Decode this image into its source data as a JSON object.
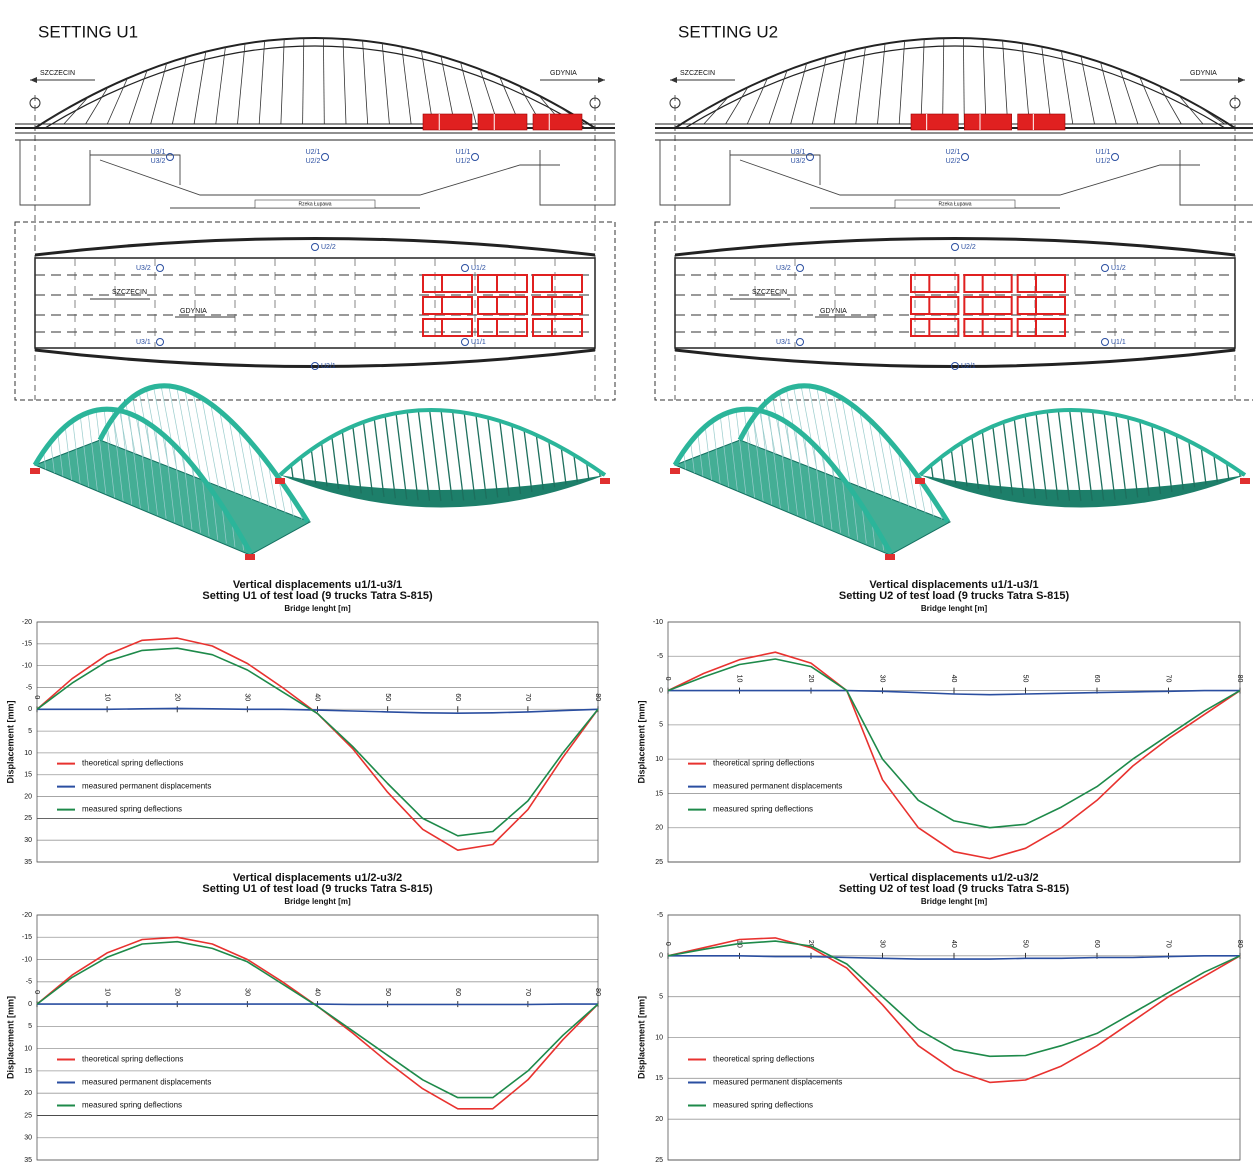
{
  "drawings": {
    "settings": [
      "SETTING U1",
      "SETTING U2"
    ],
    "west": "SZCZECIN",
    "east": "GDYNIA",
    "river": "Rzeka Łupawa",
    "sensors": [
      "U1/1",
      "U1/2",
      "U2/1",
      "U2/2",
      "U3/1",
      "U3/2"
    ]
  },
  "chart_data": [
    {
      "type": "line",
      "title": "Vertical displacements u1/1-u3/1",
      "subtitle": "Setting U1 of test load (9 trucks Tatra S-815)",
      "x_label": "Bridge lenght [m]",
      "y_label": "Displacement [mm]",
      "x": [
        0,
        5,
        10,
        15,
        20,
        25,
        30,
        35,
        40,
        45,
        50,
        55,
        60,
        65,
        70,
        75,
        80
      ],
      "xlim": [
        0,
        80
      ],
      "xticks": [
        0,
        10,
        20,
        30,
        40,
        50,
        60,
        70,
        80
      ],
      "ylim": [
        35,
        -20
      ],
      "yticks": [
        -20,
        -15,
        -10,
        -5,
        0,
        5,
        10,
        15,
        20,
        25,
        30,
        35
      ],
      "grid": true,
      "legend": "left",
      "series": [
        {
          "name": "theoretical spring deflections",
          "color": "#e8322f",
          "values": [
            0,
            -7,
            -12.5,
            -15.8,
            -16.3,
            -14.5,
            -10.5,
            -5,
            1,
            9,
            19,
            27.5,
            32.3,
            31,
            23,
            11,
            0
          ]
        },
        {
          "name": "measured permanent displacements",
          "color": "#2a4ea0",
          "values": [
            0,
            0,
            0,
            -0.1,
            -0.2,
            -0.1,
            0,
            0,
            0.2,
            0.4,
            0.6,
            0.8,
            0.9,
            0.8,
            0.6,
            0.3,
            0
          ]
        },
        {
          "name": "measured spring deflections",
          "color": "#1e8a4a",
          "values": [
            0,
            -6,
            -11,
            -13.5,
            -14,
            -12.5,
            -9,
            -4,
            1,
            8.5,
            17,
            25,
            29,
            28,
            21,
            10,
            0
          ]
        }
      ]
    },
    {
      "type": "line",
      "title": "Vertical displacements u1/1-u3/1",
      "subtitle": "Setting U2 of test load (9 trucks Tatra S-815)",
      "x_label": "Bridge lenght [m]",
      "y_label": "Displacement [mm]",
      "x": [
        0,
        5,
        10,
        15,
        20,
        25,
        30,
        35,
        40,
        45,
        50,
        55,
        60,
        65,
        70,
        75,
        80
      ],
      "xlim": [
        0,
        80
      ],
      "xticks": [
        0,
        10,
        20,
        30,
        40,
        50,
        60,
        70,
        80
      ],
      "ylim": [
        25,
        -10
      ],
      "yticks": [
        -10,
        -5,
        0,
        5,
        10,
        15,
        20,
        25
      ],
      "grid": true,
      "legend": "left",
      "series": [
        {
          "name": "theoretical spring deflections",
          "color": "#e8322f",
          "values": [
            0,
            -2.5,
            -4.5,
            -5.6,
            -4,
            0,
            13,
            20,
            23.5,
            24.5,
            23,
            20,
            16,
            11,
            7,
            3.5,
            0
          ]
        },
        {
          "name": "measured permanent displacements",
          "color": "#2a4ea0",
          "values": [
            0,
            0,
            0,
            0,
            0,
            0,
            0.1,
            0.3,
            0.5,
            0.6,
            0.5,
            0.4,
            0.3,
            0.2,
            0.1,
            0,
            0
          ]
        },
        {
          "name": "measured spring deflections",
          "color": "#1e8a4a",
          "values": [
            0,
            -2,
            -3.8,
            -4.6,
            -3.5,
            0,
            10,
            16,
            19,
            20,
            19.5,
            17,
            14,
            10,
            6.5,
            3,
            0
          ]
        }
      ]
    },
    {
      "type": "line",
      "title": "Vertical displacements u1/2-u3/2",
      "subtitle": "Setting U1 of test load (9 trucks Tatra S-815)",
      "x_label": "Bridge lenght [m]",
      "y_label": "Displacement [mm]",
      "x": [
        0,
        5,
        10,
        15,
        20,
        25,
        30,
        35,
        40,
        45,
        50,
        55,
        60,
        65,
        70,
        75,
        80
      ],
      "xlim": [
        0,
        80
      ],
      "xticks": [
        0,
        10,
        20,
        30,
        40,
        50,
        60,
        70,
        80
      ],
      "ylim": [
        35,
        -20
      ],
      "yticks": [
        -20,
        -15,
        -10,
        -5,
        0,
        5,
        10,
        15,
        20,
        25,
        30,
        35
      ],
      "grid": true,
      "legend": "left",
      "series": [
        {
          "name": "theoretical spring deflections",
          "color": "#e8322f",
          "values": [
            0,
            -6.5,
            -11.5,
            -14.5,
            -15,
            -13.5,
            -10,
            -5,
            0.5,
            6.5,
            13,
            19,
            23.5,
            23.5,
            17,
            8,
            0
          ]
        },
        {
          "name": "measured permanent displacements",
          "color": "#2a4ea0",
          "values": [
            0,
            0,
            0,
            0,
            0,
            0,
            0,
            0,
            0,
            0.1,
            0.1,
            0.1,
            0.1,
            0.1,
            0.1,
            0,
            0
          ]
        },
        {
          "name": "measured spring deflections",
          "color": "#1e8a4a",
          "values": [
            0,
            -6,
            -10.5,
            -13.5,
            -14,
            -12.5,
            -9.5,
            -4.5,
            0.5,
            6,
            11.5,
            17,
            21,
            21,
            15,
            7,
            0
          ]
        }
      ]
    },
    {
      "type": "line",
      "title": "Vertical displacements u1/2-u3/2",
      "subtitle": "Setting U2 of test load (9 trucks Tatra S-815)",
      "x_label": "Bridge lenght [m]",
      "y_label": "Displacement [mm]",
      "x": [
        0,
        5,
        10,
        15,
        20,
        25,
        30,
        35,
        40,
        45,
        50,
        55,
        60,
        65,
        70,
        75,
        80
      ],
      "xlim": [
        0,
        80
      ],
      "xticks": [
        0,
        10,
        20,
        30,
        40,
        50,
        60,
        70,
        80
      ],
      "ylim": [
        25,
        -5
      ],
      "yticks": [
        -5,
        0,
        5,
        10,
        15,
        20,
        25
      ],
      "grid": true,
      "legend": "left",
      "series": [
        {
          "name": "theoretical spring deflections",
          "color": "#e8322f",
          "values": [
            0,
            -1,
            -2,
            -2.2,
            -1,
            1.5,
            6,
            11,
            14,
            15.5,
            15.2,
            13.5,
            11,
            8,
            5,
            2.5,
            0
          ]
        },
        {
          "name": "measured permanent displacements",
          "color": "#2a4ea0",
          "values": [
            0,
            0,
            0,
            0.1,
            0.1,
            0.2,
            0.3,
            0.4,
            0.4,
            0.4,
            0.3,
            0.3,
            0.2,
            0.2,
            0.1,
            0,
            0
          ]
        },
        {
          "name": "measured spring deflections",
          "color": "#1e8a4a",
          "values": [
            0,
            -0.8,
            -1.5,
            -1.8,
            -1.2,
            1,
            5,
            9,
            11.5,
            12.3,
            12.2,
            11,
            9.5,
            7,
            4.5,
            2,
            0
          ]
        }
      ]
    }
  ]
}
